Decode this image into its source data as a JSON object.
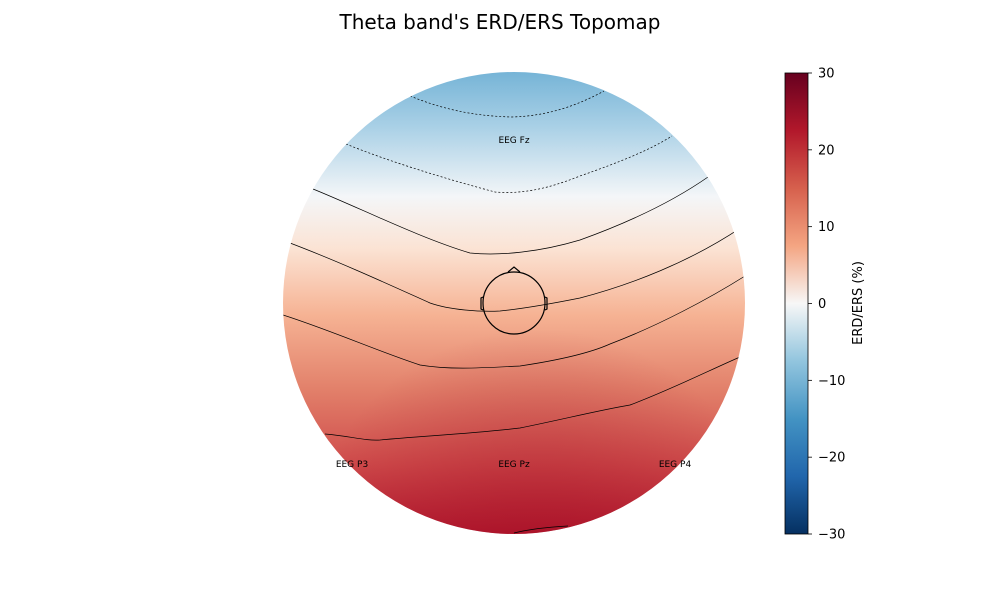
{
  "chart_data": {
    "type": "heatmap",
    "title": "Theta band's ERD/ERS Topomap",
    "colorbar": {
      "label": "ERD/ERS (%)",
      "range": [
        -30,
        30
      ],
      "ticks": [
        "30",
        "20",
        "10",
        "0",
        "−10",
        "−20",
        "−30"
      ],
      "tick_values": [
        30,
        20,
        10,
        0,
        -10,
        -20,
        -30
      ]
    },
    "electrodes": [
      {
        "name": "EEG Fz",
        "value": -12
      },
      {
        "name": "EEG P3",
        "value": 18
      },
      {
        "name": "EEG Pz",
        "value": 19
      },
      {
        "name": "EEG P4",
        "value": 20
      }
    ],
    "contour_levels": [
      -10,
      -5,
      0,
      5,
      10,
      15,
      20,
      25
    ],
    "colormap": "RdBu_r",
    "colors": {
      "negative_max": "#053061",
      "negative": "#67a9cf",
      "zero": "#f7f7f7",
      "positive": "#ef8a62",
      "positive_max": "#67001f"
    }
  }
}
